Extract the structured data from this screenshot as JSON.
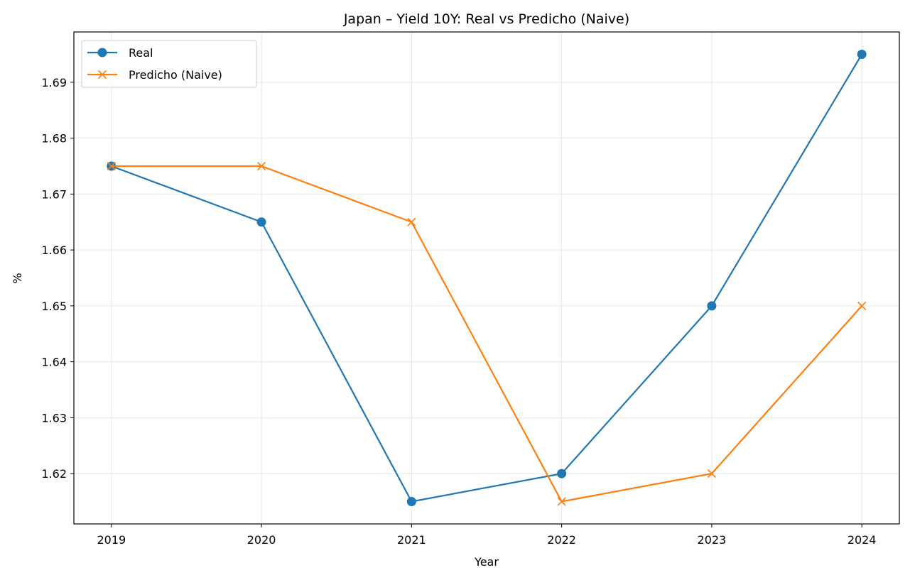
{
  "chart_data": {
    "type": "line",
    "title": "Japan – Yield 10Y: Real vs Predicho (Naive)",
    "xlabel": "Year",
    "ylabel": "%",
    "x": [
      "2019",
      "2020",
      "2021",
      "2022",
      "2023",
      "2024"
    ],
    "x_values": [
      2019,
      2020,
      2021,
      2022,
      2023,
      2024
    ],
    "xlim": [
      2018.75,
      2024.25
    ],
    "ylim": [
      1.611,
      1.699
    ],
    "yticks": [
      "1.62",
      "1.63",
      "1.64",
      "1.65",
      "1.66",
      "1.67",
      "1.68",
      "1.69"
    ],
    "ytick_values": [
      1.62,
      1.63,
      1.64,
      1.65,
      1.66,
      1.67,
      1.68,
      1.69
    ],
    "grid": true,
    "legend": "upper-left",
    "series": [
      {
        "name": "Real",
        "marker": "circle",
        "color": "#1f77b4",
        "values": [
          1.675,
          1.665,
          1.615,
          1.62,
          1.65,
          1.695
        ]
      },
      {
        "name": "Predicho (Naive)",
        "marker": "x",
        "color": "#ff7f0e",
        "values": [
          1.675,
          1.675,
          1.665,
          1.615,
          1.62,
          1.65
        ]
      }
    ]
  }
}
